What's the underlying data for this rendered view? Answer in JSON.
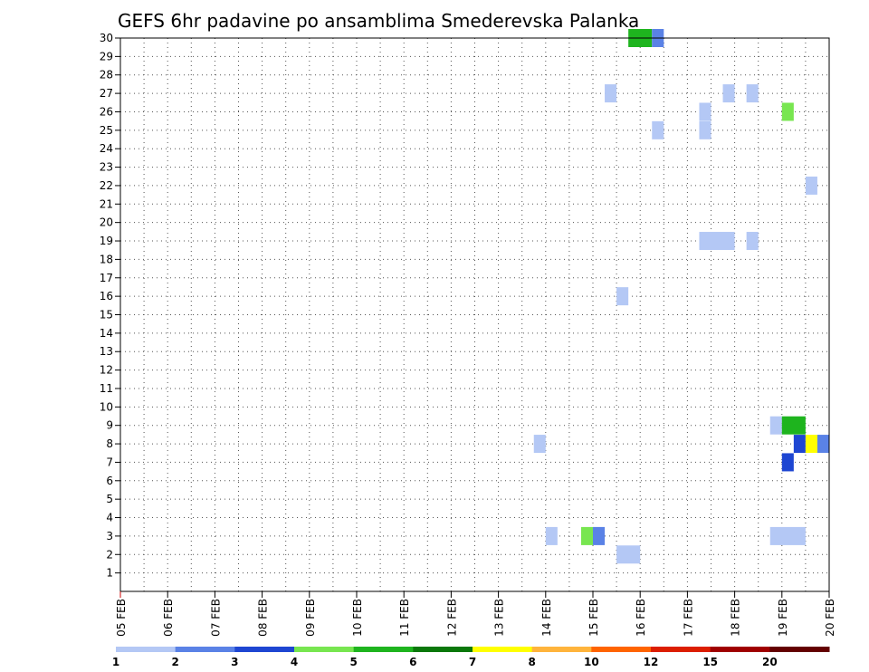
{
  "chart_data": {
    "type": "heatmap",
    "title": "GEFS 6hr padavine po ansamblima Smederevska Palanka",
    "x_labels": [
      "05 FEB",
      "06 FEB",
      "07 FEB",
      "08 FEB",
      "09 FEB",
      "10 FEB",
      "11 FEB",
      "12 FEB",
      "13 FEB",
      "14 FEB",
      "15 FEB",
      "16 FEB",
      "17 FEB",
      "18 FEB",
      "19 FEB",
      "20 FEB"
    ],
    "x_range_days": [
      0,
      15
    ],
    "y_labels": [
      "1",
      "2",
      "3",
      "4",
      "5",
      "6",
      "7",
      "8",
      "9",
      "10",
      "11",
      "12",
      "13",
      "14",
      "15",
      "16",
      "17",
      "18",
      "19",
      "20",
      "21",
      "22",
      "23",
      "24",
      "25",
      "26",
      "27",
      "28",
      "29",
      "30"
    ],
    "y_range": [
      0,
      30
    ],
    "grid": true,
    "legend": {
      "placement": "bottom",
      "levels": [
        "1",
        "2",
        "3",
        "4",
        "5",
        "6",
        "7",
        "8",
        "10",
        "12",
        "15",
        "20"
      ],
      "colors": [
        "#b4c8f5",
        "#5a82e6",
        "#1e46d2",
        "#78e650",
        "#1eb41e",
        "#0a780a",
        "#ffff00",
        "#ffb43c",
        "#ff6400",
        "#dc1e00",
        "#a00000",
        "#640000"
      ]
    },
    "cells": [
      {
        "member": 30,
        "day_start": 10.75,
        "day_end": 11.25,
        "color": "#1eb41e"
      },
      {
        "member": 30,
        "day_start": 11.25,
        "day_end": 11.5,
        "color": "#5a82e6"
      },
      {
        "member": 27,
        "day_start": 10.25,
        "day_end": 10.5,
        "color": "#b4c8f5"
      },
      {
        "member": 27,
        "day_start": 12.75,
        "day_end": 13.0,
        "color": "#b4c8f5"
      },
      {
        "member": 27,
        "day_start": 13.25,
        "day_end": 13.5,
        "color": "#b4c8f5"
      },
      {
        "member": 26,
        "day_start": 12.25,
        "day_end": 12.5,
        "color": "#b4c8f5"
      },
      {
        "member": 26,
        "day_start": 14.0,
        "day_end": 14.25,
        "color": "#78e650"
      },
      {
        "member": 25,
        "day_start": 11.25,
        "day_end": 11.5,
        "color": "#b4c8f5"
      },
      {
        "member": 25,
        "day_start": 12.25,
        "day_end": 12.5,
        "color": "#b4c8f5"
      },
      {
        "member": 22,
        "day_start": 14.5,
        "day_end": 14.75,
        "color": "#b4c8f5"
      },
      {
        "member": 19,
        "day_start": 12.25,
        "day_end": 13.0,
        "color": "#b4c8f5"
      },
      {
        "member": 19,
        "day_start": 13.25,
        "day_end": 13.5,
        "color": "#b4c8f5"
      },
      {
        "member": 16,
        "day_start": 10.5,
        "day_end": 10.75,
        "color": "#b4c8f5"
      },
      {
        "member": 9,
        "day_start": 13.75,
        "day_end": 14.0,
        "color": "#b4c8f5"
      },
      {
        "member": 9,
        "day_start": 14.0,
        "day_end": 14.5,
        "color": "#1eb41e"
      },
      {
        "member": 8,
        "day_start": 8.75,
        "day_end": 9.0,
        "color": "#b4c8f5"
      },
      {
        "member": 8,
        "day_start": 14.25,
        "day_end": 14.5,
        "color": "#1e46d2"
      },
      {
        "member": 8,
        "day_start": 14.5,
        "day_end": 14.75,
        "color": "#ffff00"
      },
      {
        "member": 8,
        "day_start": 14.75,
        "day_end": 15.0,
        "color": "#5a82e6"
      },
      {
        "member": 7,
        "day_start": 14.0,
        "day_end": 14.25,
        "color": "#1e46d2"
      },
      {
        "member": 3,
        "day_start": 9.0,
        "day_end": 9.25,
        "color": "#b4c8f5"
      },
      {
        "member": 3,
        "day_start": 9.75,
        "day_end": 10.0,
        "color": "#78e650"
      },
      {
        "member": 3,
        "day_start": 10.0,
        "day_end": 10.25,
        "color": "#5a82e6"
      },
      {
        "member": 3,
        "day_start": 13.75,
        "day_end": 14.5,
        "color": "#b4c8f5"
      },
      {
        "member": 2,
        "day_start": 10.5,
        "day_end": 11.0,
        "color": "#b4c8f5"
      }
    ]
  }
}
